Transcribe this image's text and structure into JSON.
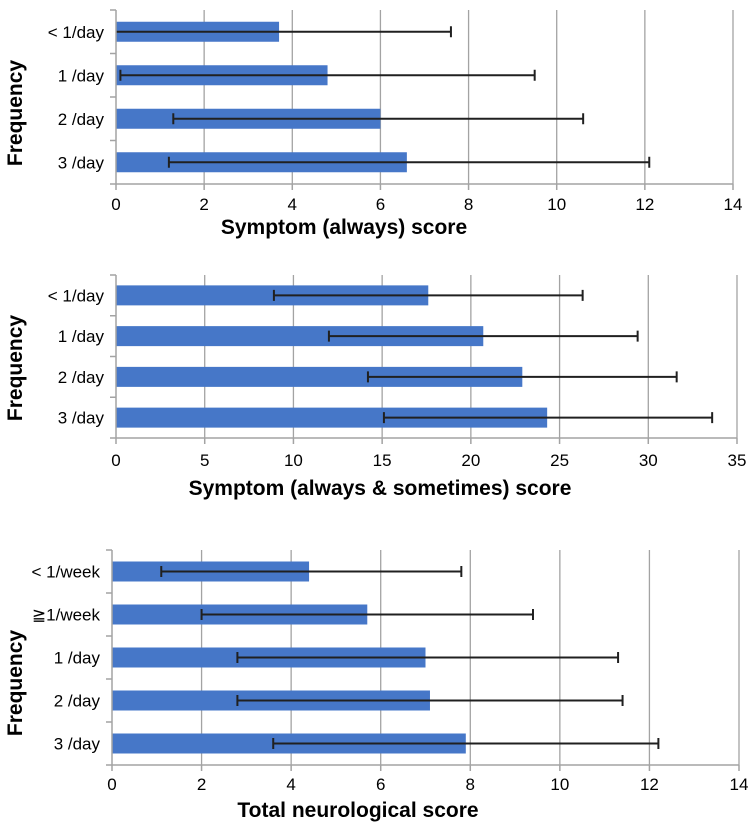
{
  "figure": {
    "background": "#ffffff",
    "description": "Three stacked horizontal bar charts with error bars"
  },
  "colors": {
    "bar_fill": "#4677c8",
    "error_bar": "#202020",
    "axis": "#a3a3a3",
    "gridline": "#a3a3a3",
    "text": "#000000"
  },
  "chart_data": [
    {
      "type": "bar",
      "orientation": "horizontal",
      "title": "Symptom (always) score",
      "ylabel": "Frequency",
      "xlabel": "",
      "categories": [
        "< 1/day",
        "1 /day",
        "2 /day",
        "3 /day"
      ],
      "values": [
        3.7,
        4.8,
        6.0,
        6.6
      ],
      "error_low": [
        0,
        0.1,
        1.3,
        1.2
      ],
      "error_high": [
        7.6,
        9.5,
        10.6,
        12.1
      ],
      "xlim": [
        0,
        14
      ],
      "xticks": [
        0,
        2,
        4,
        6,
        8,
        10,
        12,
        14
      ],
      "grid": true,
      "legend": "none"
    },
    {
      "type": "bar",
      "orientation": "horizontal",
      "title": "Symptom (always & sometimes) score",
      "ylabel": "Frequency",
      "xlabel": "",
      "categories": [
        "< 1/day",
        "1 /day",
        "2 /day",
        "3 /day"
      ],
      "values": [
        17.6,
        20.7,
        22.9,
        24.3
      ],
      "error_low": [
        8.9,
        12.0,
        14.2,
        15.1
      ],
      "error_high": [
        26.3,
        29.4,
        31.6,
        33.6
      ],
      "xlim": [
        0,
        35
      ],
      "xticks": [
        0,
        5,
        10,
        15,
        20,
        25,
        30,
        35
      ],
      "grid": true,
      "legend": "none"
    },
    {
      "type": "bar",
      "orientation": "horizontal",
      "title": "Total neurological score",
      "ylabel": "Frequency",
      "xlabel": "",
      "categories": [
        "< 1/week",
        "≧1/week",
        "1 /day",
        "2 /day",
        "3 /day"
      ],
      "values": [
        4.4,
        5.7,
        7.0,
        7.1,
        7.9
      ],
      "error_low": [
        1.1,
        2.0,
        2.8,
        2.8,
        3.6
      ],
      "error_high": [
        7.8,
        9.4,
        11.3,
        11.4,
        12.2
      ],
      "xlim": [
        0,
        14
      ],
      "xticks": [
        0,
        2,
        4,
        6,
        8,
        10,
        12,
        14
      ],
      "grid": true,
      "legend": "none"
    }
  ]
}
